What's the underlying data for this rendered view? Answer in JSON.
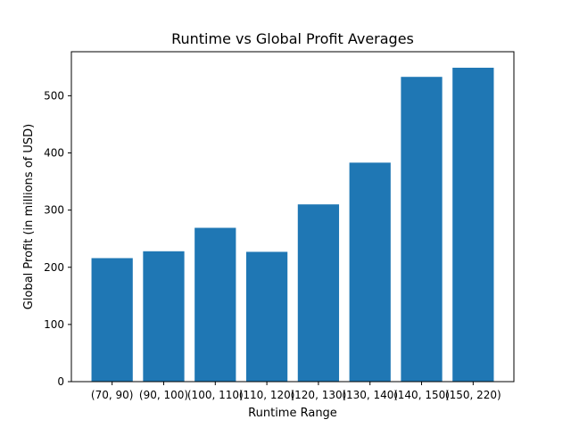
{
  "chart_data": {
    "type": "bar",
    "title": "Runtime vs Global Profit Averages",
    "xlabel": "Runtime Range",
    "ylabel": "Global Profit (in millions of USD)",
    "categories": [
      "(70, 90)",
      "(90, 100)",
      "(100, 110)",
      "(110, 120)",
      "(120, 130)",
      "(130, 140)",
      "(140, 150)",
      "(150, 220)"
    ],
    "values": [
      216,
      228,
      269,
      227,
      310,
      383,
      533,
      549
    ],
    "ylim": [
      0,
      577
    ],
    "yticks": [
      0,
      100,
      200,
      300,
      400,
      500
    ],
    "grid": false,
    "bar_color": "#1f77b4"
  }
}
